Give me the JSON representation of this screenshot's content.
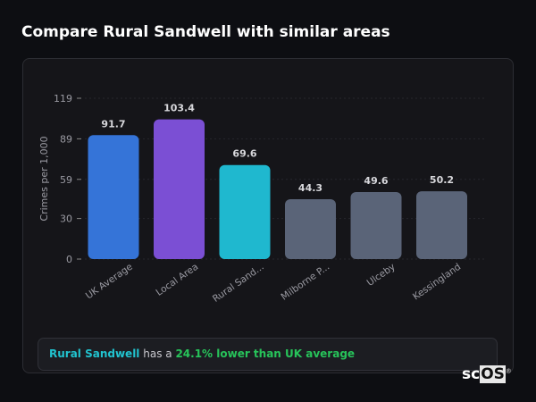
{
  "title": "Compare Rural Sandwell with similar areas",
  "chart_data": {
    "type": "bar",
    "categories": [
      "UK Average",
      "Local Area",
      "Rural Sand...",
      "Milborne P...",
      "Ulceby",
      "Kessingland"
    ],
    "values": [
      91.7,
      103.4,
      69.6,
      44.3,
      49.6,
      50.2
    ],
    "data_labels": [
      "91.7",
      "103.4",
      "69.6",
      "44.3",
      "49.6",
      "50.2"
    ],
    "colors": [
      "#3574d8",
      "#7b4fd4",
      "#1fb8cf",
      "#5a6478",
      "#5a6478",
      "#5a6478"
    ],
    "ylabel": "Crimes per 1,000",
    "xlabel": "",
    "yticks": [
      0,
      30,
      59,
      89,
      119
    ],
    "ylim": [
      0,
      119
    ],
    "grid": true
  },
  "info": {
    "area": "Rural Sandwell",
    "middle": " has a ",
    "highlight": "24.1% lower than UK average"
  },
  "logo": {
    "text1": "sc",
    "text2": "OS",
    "mark": "®"
  }
}
